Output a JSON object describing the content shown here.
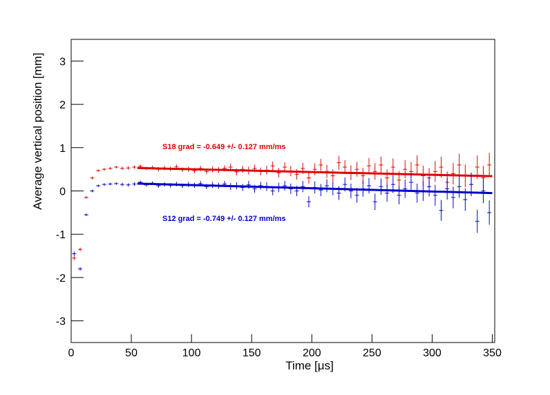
{
  "chart_data": {
    "type": "errorbar",
    "xlabel": "Time [μs]",
    "ylabel": "Average vertical position [mm]",
    "xlim": [
      0,
      352
    ],
    "ylim": [
      -3.5,
      3.5
    ],
    "xticks": [
      0,
      50,
      100,
      150,
      200,
      250,
      300,
      350
    ],
    "yticks": [
      -3,
      -2,
      -1,
      0,
      1,
      2,
      3
    ],
    "grid": false,
    "x": [
      2.5,
      7.5,
      12.5,
      17.5,
      22.5,
      27.5,
      32.5,
      37.5,
      42.5,
      47.5,
      52.5,
      57.5,
      62.5,
      67.5,
      72.5,
      77.5,
      82.5,
      87.5,
      92.5,
      97.5,
      102.5,
      107.5,
      112.5,
      117.5,
      122.5,
      127.5,
      132.5,
      137.5,
      142.5,
      147.5,
      152.5,
      157.5,
      162.5,
      167.5,
      172.5,
      177.5,
      182.5,
      187.5,
      192.5,
      197.5,
      202.5,
      207.5,
      212.5,
      217.5,
      222.5,
      227.5,
      232.5,
      237.5,
      242.5,
      247.5,
      252.5,
      257.5,
      262.5,
      267.5,
      272.5,
      277.5,
      282.5,
      287.5,
      292.5,
      297.5,
      302.5,
      307.5,
      312.5,
      317.5,
      322.5,
      327.5,
      332.5,
      337.5,
      342.5,
      347.5
    ],
    "series": [
      {
        "color": "#e00000",
        "annotation": "S18 grad = -0.649 +/- 0.127 mm/ms",
        "values": [
          -1.55,
          -1.35,
          -0.15,
          0.3,
          0.47,
          0.5,
          0.52,
          0.55,
          0.52,
          0.53,
          0.55,
          0.57,
          0.52,
          0.54,
          0.5,
          0.53,
          0.51,
          0.56,
          0.49,
          0.5,
          0.47,
          0.52,
          0.45,
          0.5,
          0.48,
          0.52,
          0.55,
          0.44,
          0.5,
          0.47,
          0.52,
          0.45,
          0.48,
          0.58,
          0.42,
          0.55,
          0.46,
          0.38,
          0.52,
          0.3,
          0.5,
          0.6,
          0.45,
          0.35,
          0.65,
          0.55,
          0.42,
          0.5,
          0.35,
          0.58,
          0.45,
          0.6,
          0.3,
          0.55,
          0.25,
          0.5,
          0.45,
          0.6,
          0.35,
          0.3,
          0.45,
          0.55,
          0.2,
          0.4,
          0.6,
          0.35,
          0.15,
          0.55,
          0.3,
          0.6
        ],
        "errors": [
          0.05,
          0.04,
          0.03,
          0.03,
          0.03,
          0.03,
          0.03,
          0.03,
          0.04,
          0.04,
          0.04,
          0.04,
          0.04,
          0.04,
          0.05,
          0.05,
          0.05,
          0.05,
          0.05,
          0.06,
          0.06,
          0.06,
          0.06,
          0.07,
          0.07,
          0.07,
          0.08,
          0.08,
          0.08,
          0.09,
          0.09,
          0.09,
          0.1,
          0.1,
          0.11,
          0.11,
          0.12,
          0.12,
          0.13,
          0.13,
          0.14,
          0.14,
          0.15,
          0.15,
          0.16,
          0.16,
          0.17,
          0.17,
          0.18,
          0.18,
          0.19,
          0.19,
          0.2,
          0.2,
          0.21,
          0.21,
          0.22,
          0.22,
          0.23,
          0.23,
          0.24,
          0.24,
          0.25,
          0.25,
          0.26,
          0.26,
          0.27,
          0.27,
          0.28,
          0.28
        ],
        "fit": {
          "x": [
            55,
            350
          ],
          "values": [
            0.53,
            0.34
          ]
        }
      },
      {
        "color": "#0000c8",
        "annotation": "S12 grad = -0.749 +/- 0.127 mm/ms",
        "values": [
          -1.45,
          -1.8,
          -0.55,
          0.0,
          0.12,
          0.15,
          0.16,
          0.17,
          0.15,
          0.14,
          0.16,
          0.2,
          0.14,
          0.18,
          0.12,
          0.15,
          0.13,
          0.16,
          0.12,
          0.15,
          0.13,
          0.17,
          0.1,
          0.14,
          0.12,
          0.16,
          0.1,
          0.12,
          0.08,
          0.14,
          0.05,
          0.12,
          0.1,
          0.0,
          0.08,
          0.12,
          0.05,
          0.0,
          0.1,
          -0.25,
          0.08,
          0.02,
          0.12,
          0.05,
          -0.05,
          0.15,
          0.0,
          -0.1,
          0.05,
          0.12,
          -0.25,
          0.1,
          -0.05,
          0.15,
          -0.1,
          0.05,
          0.2,
          -0.05,
          0.0,
          0.1,
          -0.1,
          -0.45,
          0.05,
          -0.15,
          0.1,
          -0.2,
          0.15,
          -0.7,
          0.0,
          -0.5
        ],
        "errors": [
          0.05,
          0.04,
          0.03,
          0.03,
          0.03,
          0.03,
          0.03,
          0.03,
          0.04,
          0.04,
          0.04,
          0.04,
          0.04,
          0.04,
          0.05,
          0.05,
          0.05,
          0.05,
          0.05,
          0.06,
          0.06,
          0.06,
          0.06,
          0.07,
          0.07,
          0.07,
          0.08,
          0.08,
          0.08,
          0.09,
          0.09,
          0.09,
          0.1,
          0.1,
          0.11,
          0.11,
          0.12,
          0.12,
          0.13,
          0.13,
          0.14,
          0.14,
          0.15,
          0.15,
          0.16,
          0.16,
          0.17,
          0.17,
          0.18,
          0.18,
          0.19,
          0.19,
          0.2,
          0.2,
          0.21,
          0.21,
          0.22,
          0.22,
          0.23,
          0.23,
          0.24,
          0.24,
          0.25,
          0.25,
          0.26,
          0.26,
          0.27,
          0.27,
          0.28,
          0.28
        ],
        "fit": {
          "x": [
            55,
            350
          ],
          "values": [
            0.17,
            -0.05
          ]
        }
      }
    ]
  }
}
